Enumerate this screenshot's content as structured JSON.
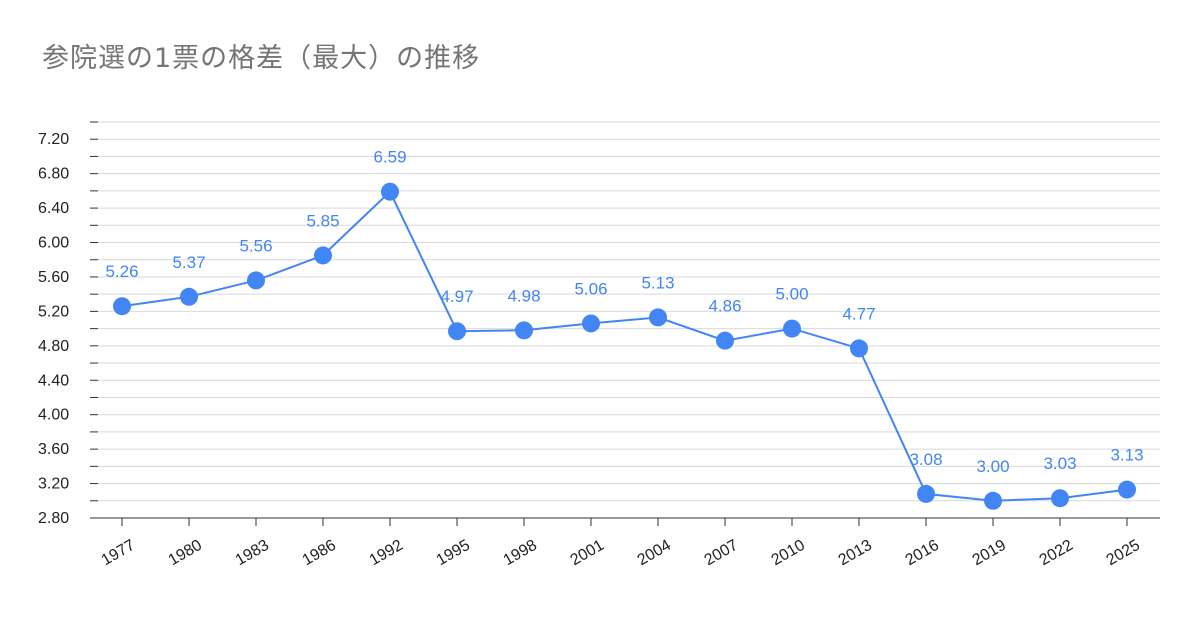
{
  "chart_data": {
    "type": "line",
    "title": "参院選の1票の格差（最大）の推移",
    "xlabel": "",
    "ylabel": "",
    "x": [
      "1977",
      "1980",
      "1983",
      "1986",
      "1992",
      "1995",
      "1998",
      "2001",
      "2004",
      "2007",
      "2010",
      "2013",
      "2016",
      "2019",
      "2022",
      "2025"
    ],
    "values": [
      5.26,
      5.37,
      5.56,
      5.85,
      6.59,
      4.97,
      4.98,
      5.06,
      5.13,
      4.86,
      5.0,
      4.77,
      3.08,
      3.0,
      3.03,
      3.13
    ],
    "data_labels": [
      "5.26",
      "5.37",
      "5.56",
      "5.85",
      "6.59",
      "4.97",
      "4.98",
      "5.06",
      "5.13",
      "4.86",
      "5.00",
      "4.77",
      "3.08",
      "3.00",
      "3.03",
      "3.13"
    ],
    "ylim": [
      2.8,
      7.4
    ],
    "y_ticks": [
      "2.80",
      "3.20",
      "3.60",
      "4.00",
      "4.40",
      "4.80",
      "5.20",
      "5.60",
      "6.00",
      "6.40",
      "6.80",
      "7.20"
    ],
    "grid": true,
    "legend": "none",
    "colors": {
      "series": "#4285f4",
      "title": "#757575",
      "grid": "#d9d9d9",
      "axis": "#333333"
    }
  }
}
